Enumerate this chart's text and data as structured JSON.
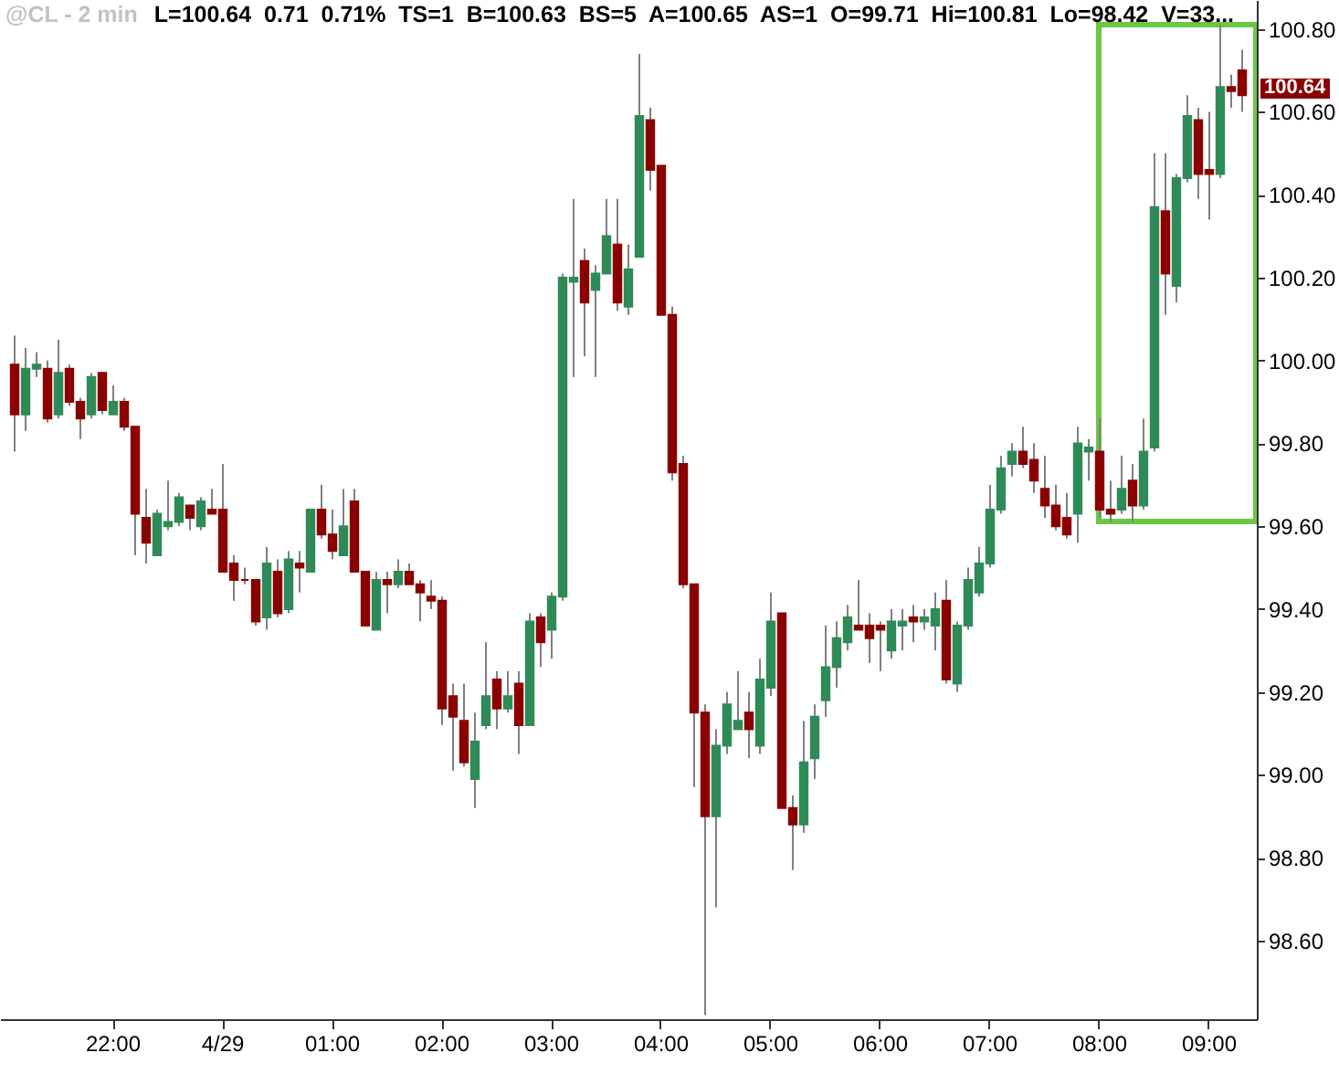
{
  "chart_data": {
    "type": "candlestick",
    "title": "@CL - 2 min",
    "subtitle": "L=100.64  0.71  0.71%  TS=1  B=100.63  BS=5  A=100.65  AS=1  O=99.71  Hi=100.81  Lo=98.42  V=33...",
    "categories": [
      null,
      null,
      null,
      null,
      null,
      null,
      null,
      null,
      null,
      "22:00",
      null,
      null,
      null,
      null,
      null,
      null,
      null,
      null,
      null,
      "4/29",
      null,
      null,
      null,
      null,
      null,
      null,
      null,
      null,
      null,
      "01:00",
      null,
      null,
      null,
      null,
      null,
      null,
      null,
      null,
      null,
      "02:00",
      null,
      null,
      null,
      null,
      null,
      null,
      null,
      null,
      null,
      "03:00",
      null,
      null,
      null,
      null,
      null,
      null,
      null,
      null,
      null,
      "04:00",
      null,
      null,
      null,
      null,
      null,
      null,
      null,
      null,
      null,
      "05:00",
      null,
      null,
      null,
      null,
      null,
      null,
      null,
      null,
      null,
      "06:00",
      null,
      null,
      null,
      null,
      null,
      null,
      null,
      null,
      null,
      "07:00",
      null,
      null,
      null,
      null,
      null,
      null,
      null,
      null,
      null,
      "08:00",
      null,
      null,
      null,
      null,
      null,
      null,
      null,
      null,
      null,
      "09:00",
      null,
      null,
      null
    ],
    "ohlc": [
      [
        99.99,
        100.06,
        99.78,
        99.87
      ],
      [
        99.87,
        100.03,
        99.83,
        99.98
      ],
      [
        99.98,
        100.02,
        99.96,
        99.99
      ],
      [
        99.98,
        100.0,
        99.85,
        99.86
      ],
      [
        99.87,
        100.05,
        99.86,
        99.97
      ],
      [
        99.98,
        99.99,
        99.89,
        99.9
      ],
      [
        99.9,
        99.91,
        99.81,
        99.86
      ],
      [
        99.87,
        99.97,
        99.86,
        99.96
      ],
      [
        99.97,
        99.97,
        99.87,
        99.88
      ],
      [
        99.87,
        99.94,
        99.87,
        99.9
      ],
      [
        99.9,
        99.91,
        99.83,
        99.84
      ],
      [
        99.84,
        99.84,
        99.53,
        99.63
      ],
      [
        99.62,
        99.69,
        99.51,
        99.56
      ],
      [
        99.53,
        99.64,
        99.53,
        99.63
      ],
      [
        99.6,
        99.71,
        99.59,
        99.61
      ],
      [
        99.61,
        99.68,
        99.6,
        99.67
      ],
      [
        99.65,
        99.65,
        99.59,
        99.62
      ],
      [
        99.6,
        99.67,
        99.59,
        99.66
      ],
      [
        99.64,
        99.69,
        99.63,
        99.63
      ],
      [
        99.64,
        99.75,
        99.49,
        99.49
      ],
      [
        99.51,
        99.53,
        99.42,
        99.47
      ],
      [
        99.47,
        99.5,
        99.46,
        99.47
      ],
      [
        99.47,
        99.47,
        99.36,
        99.37
      ],
      [
        99.38,
        99.55,
        99.35,
        99.51
      ],
      [
        99.49,
        99.52,
        99.38,
        99.39
      ],
      [
        99.4,
        99.54,
        99.39,
        99.52
      ],
      [
        99.51,
        99.54,
        99.44,
        99.5
      ],
      [
        99.49,
        99.64,
        99.49,
        99.64
      ],
      [
        99.64,
        99.7,
        99.57,
        99.58
      ],
      [
        99.58,
        99.64,
        99.52,
        99.54
      ],
      [
        99.53,
        99.69,
        99.53,
        99.6
      ],
      [
        99.66,
        99.69,
        99.49,
        99.49
      ],
      [
        99.49,
        99.49,
        99.36,
        99.36
      ],
      [
        99.35,
        99.49,
        99.35,
        99.47
      ],
      [
        99.47,
        99.49,
        99.39,
        99.46
      ],
      [
        99.46,
        99.52,
        99.45,
        99.49
      ],
      [
        99.49,
        99.51,
        99.46,
        99.46
      ],
      [
        99.46,
        99.47,
        99.37,
        99.44
      ],
      [
        99.43,
        99.47,
        99.4,
        99.42
      ],
      [
        99.42,
        99.43,
        99.12,
        99.16
      ],
      [
        99.19,
        99.22,
        99.01,
        99.14
      ],
      [
        99.13,
        99.22,
        99.02,
        99.03
      ],
      [
        98.99,
        99.15,
        98.92,
        99.08
      ],
      [
        99.12,
        99.32,
        99.11,
        99.19
      ],
      [
        99.23,
        99.25,
        99.11,
        99.16
      ],
      [
        99.16,
        99.25,
        99.15,
        99.19
      ],
      [
        99.22,
        99.25,
        99.05,
        99.12
      ],
      [
        99.12,
        99.39,
        99.12,
        99.37
      ],
      [
        99.38,
        99.39,
        99.26,
        99.32
      ],
      [
        99.35,
        99.44,
        99.28,
        99.43
      ],
      [
        99.43,
        100.21,
        99.42,
        100.2
      ],
      [
        100.19,
        100.39,
        99.96,
        100.2
      ],
      [
        100.24,
        100.27,
        100.01,
        100.14
      ],
      [
        100.17,
        100.23,
        99.96,
        100.21
      ],
      [
        100.21,
        100.39,
        100.21,
        100.3
      ],
      [
        100.28,
        100.39,
        100.12,
        100.14
      ],
      [
        100.13,
        100.28,
        100.11,
        100.22
      ],
      [
        100.25,
        100.74,
        100.25,
        100.59
      ],
      [
        100.58,
        100.61,
        100.41,
        100.46
      ],
      [
        100.47,
        100.47,
        100.11,
        100.11
      ],
      [
        100.11,
        100.13,
        99.71,
        99.73
      ],
      [
        99.75,
        99.77,
        99.45,
        99.46
      ],
      [
        99.46,
        99.46,
        98.97,
        99.15
      ],
      [
        99.15,
        99.17,
        98.42,
        98.9
      ],
      [
        98.9,
        99.11,
        98.68,
        99.07
      ],
      [
        99.07,
        99.2,
        99.05,
        99.17
      ],
      [
        99.11,
        99.25,
        99.11,
        99.13
      ],
      [
        99.15,
        99.2,
        99.04,
        99.11
      ],
      [
        99.07,
        99.28,
        99.05,
        99.23
      ],
      [
        99.21,
        99.44,
        99.19,
        99.37
      ],
      [
        99.39,
        99.39,
        98.92,
        98.92
      ],
      [
        98.92,
        98.95,
        98.77,
        98.88
      ],
      [
        98.88,
        99.13,
        98.86,
        99.03
      ],
      [
        99.04,
        99.17,
        98.99,
        99.14
      ],
      [
        99.18,
        99.36,
        99.14,
        99.26
      ],
      [
        99.26,
        99.37,
        99.21,
        99.33
      ],
      [
        99.32,
        99.41,
        99.3,
        99.38
      ],
      [
        99.36,
        99.47,
        99.35,
        99.35
      ],
      [
        99.36,
        99.39,
        99.27,
        99.33
      ],
      [
        99.36,
        99.37,
        99.25,
        99.35
      ],
      [
        99.3,
        99.4,
        99.28,
        99.37
      ],
      [
        99.36,
        99.4,
        99.3,
        99.37
      ],
      [
        99.38,
        99.41,
        99.32,
        99.37
      ],
      [
        99.37,
        99.4,
        99.35,
        99.38
      ],
      [
        99.36,
        99.44,
        99.3,
        99.4
      ],
      [
        99.42,
        99.47,
        99.22,
        99.23
      ],
      [
        99.22,
        99.37,
        99.2,
        99.36
      ],
      [
        99.36,
        99.5,
        99.35,
        99.47
      ],
      [
        99.44,
        99.55,
        99.43,
        99.51
      ],
      [
        99.51,
        99.7,
        99.5,
        99.64
      ],
      [
        99.64,
        99.77,
        99.63,
        99.74
      ],
      [
        99.75,
        99.8,
        99.72,
        99.78
      ],
      [
        99.78,
        99.84,
        99.74,
        99.75
      ],
      [
        99.76,
        99.8,
        99.68,
        99.71
      ],
      [
        99.69,
        99.77,
        99.62,
        99.65
      ],
      [
        99.65,
        99.7,
        99.59,
        99.6
      ],
      [
        99.62,
        99.68,
        99.57,
        99.58
      ],
      [
        99.63,
        99.84,
        99.56,
        99.8
      ],
      [
        99.78,
        99.81,
        99.71,
        99.79
      ],
      [
        99.78,
        99.86,
        99.62,
        99.64
      ],
      [
        99.64,
        99.71,
        99.61,
        99.63
      ],
      [
        99.64,
        99.77,
        99.63,
        99.69
      ],
      [
        99.71,
        99.75,
        99.61,
        99.65
      ],
      [
        99.65,
        99.86,
        99.64,
        99.78
      ],
      [
        99.79,
        100.5,
        99.78,
        100.37
      ],
      [
        100.36,
        100.5,
        100.11,
        100.21
      ],
      [
        100.18,
        100.45,
        100.14,
        100.44
      ],
      [
        100.44,
        100.64,
        100.43,
        100.59
      ],
      [
        100.58,
        100.61,
        100.39,
        100.45
      ],
      [
        100.46,
        100.6,
        100.34,
        100.45
      ],
      [
        100.45,
        100.81,
        100.44,
        100.66
      ],
      [
        100.66,
        100.69,
        100.61,
        100.65
      ],
      [
        100.7,
        100.75,
        100.6,
        100.64
      ]
    ],
    "colors": [
      "#8b0000",
      "#2e8b57",
      "#2e8b57",
      "#8b0000",
      "#2e8b57",
      "#8b0000",
      "#8b0000",
      "#2e8b57",
      "#8b0000",
      "#2e8b57",
      "#8b0000",
      "#8b0000",
      "#8b0000",
      "#2e8b57",
      "#2e8b57",
      "#2e8b57",
      "#8b0000",
      "#2e8b57",
      "#8b0000",
      "#8b0000",
      "#8b0000",
      "#8b0000",
      "#8b0000",
      "#2e8b57",
      "#8b0000",
      "#2e8b57",
      "#8b0000",
      "#2e8b57",
      "#8b0000",
      "#8b0000",
      "#2e8b57",
      "#8b0000",
      "#8b0000",
      "#2e8b57",
      "#8b0000",
      "#2e8b57",
      "#8b0000",
      "#8b0000",
      "#8b0000",
      "#8b0000",
      "#8b0000",
      "#8b0000",
      "#2e8b57",
      "#2e8b57",
      "#8b0000",
      "#2e8b57",
      "#8b0000",
      "#2e8b57",
      "#8b0000",
      "#2e8b57",
      "#2e8b57",
      "#2e8b57",
      "#8b0000",
      "#2e8b57",
      "#2e8b57",
      "#8b0000",
      "#2e8b57",
      "#2e8b57",
      "#8b0000",
      "#8b0000",
      "#8b0000",
      "#8b0000",
      "#8b0000",
      "#8b0000",
      "#2e8b57",
      "#2e8b57",
      "#2e8b57",
      "#8b0000",
      "#2e8b57",
      "#2e8b57",
      "#8b0000",
      "#8b0000",
      "#2e8b57",
      "#2e8b57",
      "#2e8b57",
      "#2e8b57",
      "#2e8b57",
      "#8b0000",
      "#8b0000",
      "#8b0000",
      "#2e8b57",
      "#2e8b57",
      "#8b0000",
      "#2e8b57",
      "#2e8b57",
      "#8b0000",
      "#2e8b57",
      "#2e8b57",
      "#2e8b57",
      "#2e8b57",
      "#2e8b57",
      "#2e8b57",
      "#8b0000",
      "#8b0000",
      "#8b0000",
      "#8b0000",
      "#8b0000",
      "#2e8b57",
      "#2e8b57",
      "#8b0000",
      "#8b0000",
      "#2e8b57",
      "#8b0000",
      "#2e8b57",
      "#2e8b57",
      "#8b0000",
      "#2e8b57",
      "#2e8b57",
      "#8b0000",
      "#8b0000",
      "#2e8b57",
      "#8b0000",
      "#8b0000"
    ],
    "ylim": [
      98.41,
      100.87
    ],
    "yticks": [
      {
        "value": 98.6,
        "label": "98.60"
      },
      {
        "value": 98.8,
        "label": "98.80"
      },
      {
        "value": 99.0,
        "label": "99.00"
      },
      {
        "value": 99.2,
        "label": "99.20"
      },
      {
        "value": 99.4,
        "label": "99.40"
      },
      {
        "value": 99.6,
        "label": "99.60"
      },
      {
        "value": 99.8,
        "label": "99.80"
      },
      {
        "value": 100.0,
        "label": "100.00"
      },
      {
        "value": 100.2,
        "label": "100.20"
      },
      {
        "value": 100.4,
        "label": "100.40"
      },
      {
        "value": 100.6,
        "label": "100.60"
      },
      {
        "value": 100.8,
        "label": "100.80"
      }
    ],
    "annotations": [
      "100.64"
    ]
  }
}
